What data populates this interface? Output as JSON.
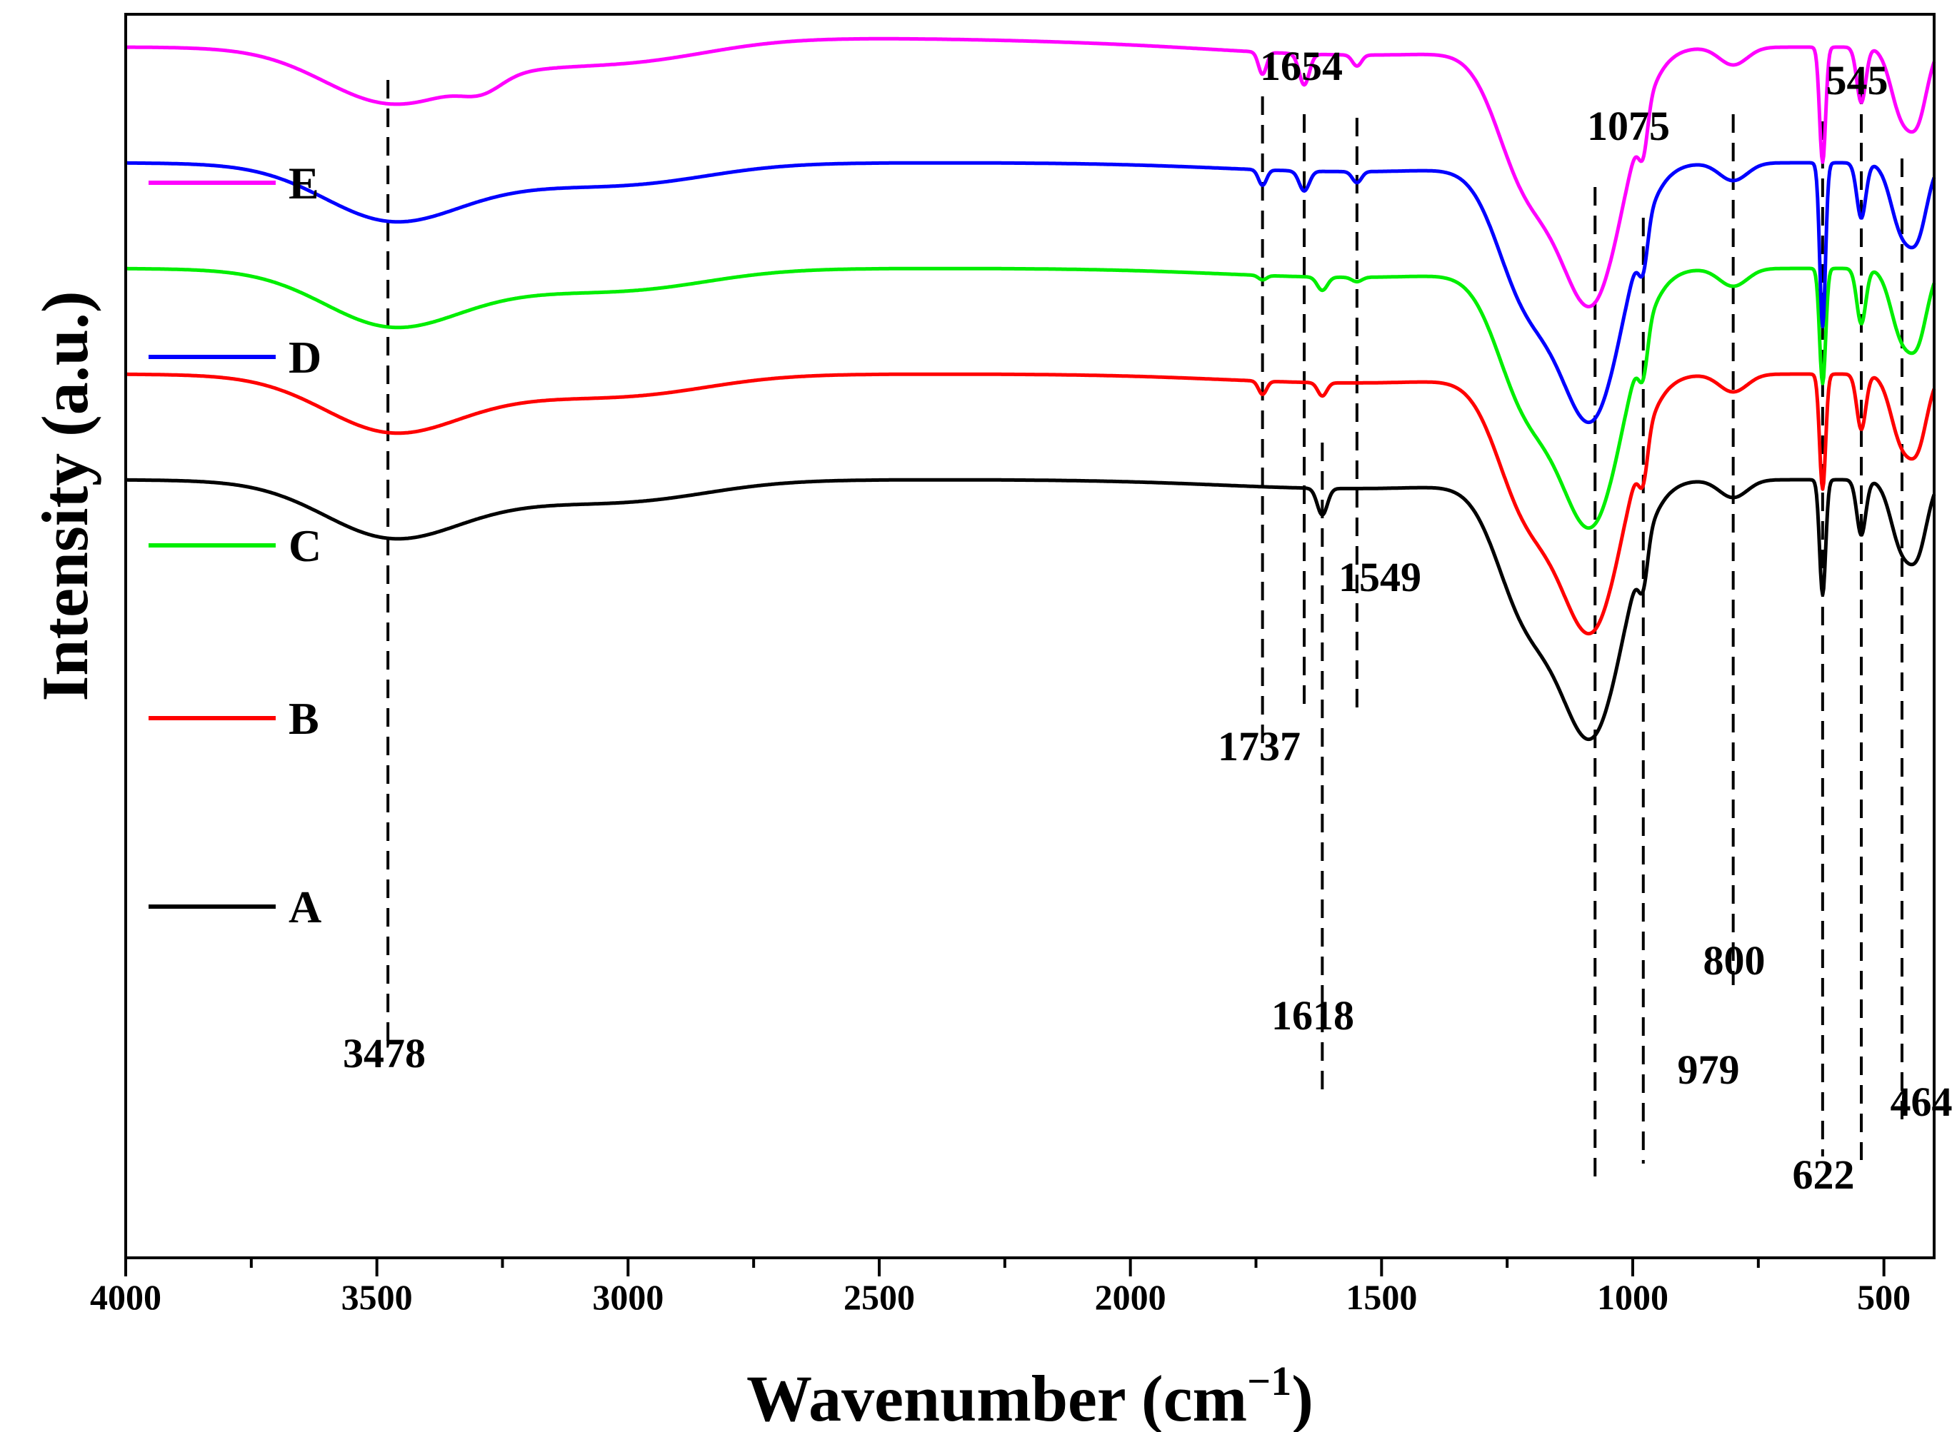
{
  "chart_data": {
    "type": "line",
    "title": "",
    "xlabel": "Wavenumber (cm",
    "xlabel_sup": "−1",
    "xlabel_close": ")",
    "ylabel": "Intensity (a.u.)",
    "xlim": [
      4000,
      400
    ],
    "ylim": [
      0,
      1
    ],
    "x_reversed": true,
    "x_ticks": [
      4000,
      3500,
      3000,
      2500,
      2000,
      1500,
      1000,
      500
    ],
    "x_tick_labels": [
      "4000",
      "3500",
      "3000",
      "2500",
      "2000",
      "1500",
      "1000",
      "500"
    ],
    "legend": [
      "E",
      "D",
      "C",
      "B",
      "A"
    ],
    "series": [
      {
        "name": "A",
        "color": "#000000",
        "offset": 0.0
      },
      {
        "name": "B",
        "color": "#ff0000",
        "offset": 0.15
      },
      {
        "name": "C",
        "color": "#00ee00",
        "offset": 0.3
      },
      {
        "name": "D",
        "color": "#0000ff",
        "offset": 0.45
      },
      {
        "name": "E",
        "color": "#ff00ff",
        "offset": 0.6
      }
    ],
    "peak_markers": [
      3478,
      1737,
      1654,
      1618,
      1549,
      1075,
      979,
      800,
      622,
      545,
      464
    ],
    "annotations": [
      {
        "text": "3478",
        "x": 3478
      },
      {
        "text": "1737",
        "x": 1737
      },
      {
        "text": "1654",
        "x": 1654
      },
      {
        "text": "1618",
        "x": 1618
      },
      {
        "text": "1549",
        "x": 1549
      },
      {
        "text": "1075",
        "x": 1075
      },
      {
        "text": "979",
        "x": 979
      },
      {
        "text": "800",
        "x": 800
      },
      {
        "text": "622",
        "x": 622
      },
      {
        "text": "545",
        "x": 545
      },
      {
        "text": "464",
        "x": 464
      }
    ]
  }
}
